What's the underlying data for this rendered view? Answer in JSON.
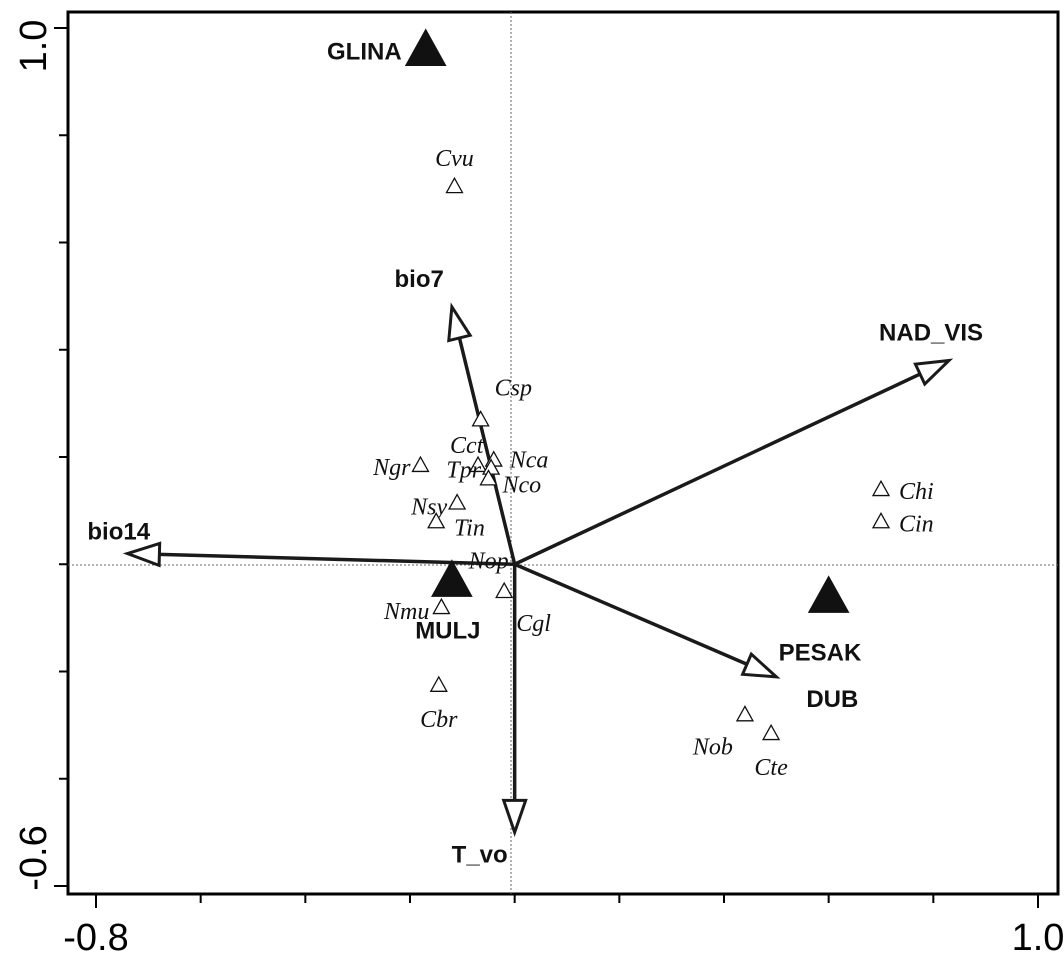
{
  "chart_data": {
    "type": "scatter",
    "xlim": [
      -0.8,
      1.0
    ],
    "ylim": [
      -0.6,
      1.0
    ],
    "x_tick_labels": [
      "-0.8",
      "1.0"
    ],
    "y_tick_labels": [
      "1.0",
      "-0.6"
    ],
    "grid": false,
    "reference_lines": "dotted lines at x = 0 and y = 0",
    "arrows": [
      {
        "label": "bio7",
        "x": -0.12,
        "y": 0.48
      },
      {
        "label": "NAD_VIS",
        "x": 0.83,
        "y": 0.38
      },
      {
        "label": "bio14",
        "x": -0.74,
        "y": 0.02
      },
      {
        "label": "DUB",
        "x": 0.5,
        "y": -0.21
      },
      {
        "label": "T_vo",
        "x": 0.0,
        "y": -0.5
      }
    ],
    "centroids": [
      {
        "label": "GLINA",
        "x": -0.17,
        "y": 0.96
      },
      {
        "label": "MULJ",
        "x": -0.12,
        "y": -0.03
      },
      {
        "label": "PESAK",
        "x": 0.6,
        "y": -0.06
      }
    ],
    "species": [
      {
        "label": "Cvu",
        "x": -0.115,
        "y": 0.705
      },
      {
        "label": "Csp",
        "x": -0.065,
        "y": 0.27
      },
      {
        "label": "Cct",
        "x": -0.07,
        "y": 0.185
      },
      {
        "label": "Nca",
        "x": -0.04,
        "y": 0.195
      },
      {
        "label": "Ngr",
        "x": -0.18,
        "y": 0.185
      },
      {
        "label": "Tpr",
        "x": -0.045,
        "y": 0.18
      },
      {
        "label": "Nco",
        "x": -0.05,
        "y": 0.16
      },
      {
        "label": "Nsy",
        "x": -0.11,
        "y": 0.115
      },
      {
        "label": "Tin",
        "x": -0.15,
        "y": 0.08
      },
      {
        "label": "Nop",
        "x": 0.0,
        "y": 0.0
      },
      {
        "label": "Nmu",
        "x": -0.14,
        "y": -0.08
      },
      {
        "label": "Cgl",
        "x": -0.02,
        "y": -0.05
      },
      {
        "label": "Cbr",
        "x": -0.145,
        "y": -0.225
      },
      {
        "label": "Nob",
        "x": 0.44,
        "y": -0.28
      },
      {
        "label": "Cte",
        "x": 0.49,
        "y": -0.315
      },
      {
        "label": "Chi",
        "x": 0.7,
        "y": 0.14
      },
      {
        "label": "Cin",
        "x": 0.7,
        "y": 0.08
      }
    ]
  }
}
